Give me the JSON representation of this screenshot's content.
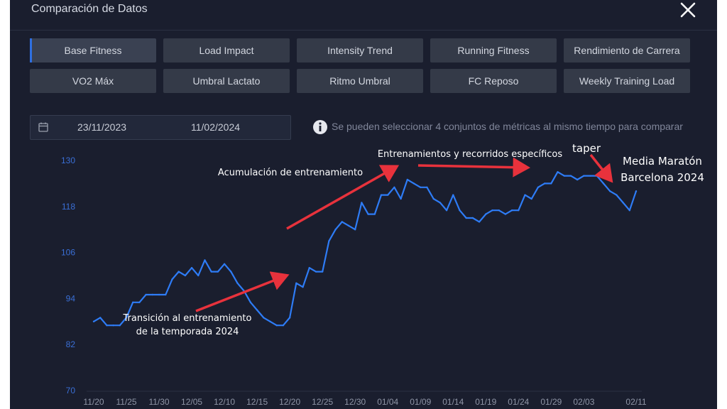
{
  "window": {
    "title": "Comparación de Datos",
    "close_icon": "close-icon"
  },
  "metrics": [
    {
      "label": "Base Fitness",
      "active": true
    },
    {
      "label": "Load Impact",
      "active": false
    },
    {
      "label": "Intensity Trend",
      "active": false
    },
    {
      "label": "Running Fitness",
      "active": false
    },
    {
      "label": "Rendimiento de Carrera",
      "active": false
    },
    {
      "label": "VO2 Máx",
      "active": false
    },
    {
      "label": "Umbral Lactato",
      "active": false
    },
    {
      "label": "Ritmo Umbral",
      "active": false
    },
    {
      "label": "FC Reposo",
      "active": false
    },
    {
      "label": "Weekly Training Load",
      "active": false
    }
  ],
  "date_range": {
    "start": "23/11/2023",
    "end": "11/02/2024",
    "icon": "calendar-icon"
  },
  "info": {
    "text": "Se pueden seleccionar 4 conjuntos de métricas al mismo tiempo para comparar",
    "icon": "info-icon"
  },
  "colors": {
    "line": "#2e7cf6",
    "axis_text": "#3a6fd6",
    "annotation": "#e8323c",
    "background": "#1a1e2e"
  },
  "chart_data": {
    "type": "line",
    "title": "",
    "xlabel": "",
    "ylabel": "",
    "ylim": [
      70,
      130
    ],
    "yticks": [
      "130",
      "118",
      "106",
      "94",
      "82",
      "70"
    ],
    "xticks": [
      "11/20",
      "11/25",
      "11/30",
      "12/05",
      "12/10",
      "12/15",
      "12/20",
      "12/25",
      "12/30",
      "01/04",
      "01/09",
      "01/14",
      "01/19",
      "01/24",
      "01/29",
      "02/03",
      "02/11"
    ],
    "grid": false,
    "series": [
      {
        "x": [
          "11/20",
          "11/21",
          "11/22",
          "11/23",
          "11/24",
          "11/25",
          "11/26",
          "11/27",
          "11/28",
          "11/29",
          "11/30",
          "12/01",
          "12/02",
          "12/03",
          "12/04",
          "12/05",
          "12/06",
          "12/07",
          "12/08",
          "12/09",
          "12/10",
          "12/11",
          "12/12",
          "12/13",
          "12/14",
          "12/15",
          "12/16",
          "12/17",
          "12/18",
          "12/19",
          "12/20",
          "12/21",
          "12/22",
          "12/23",
          "12/24",
          "12/25",
          "12/26",
          "12/27",
          "12/28",
          "12/29",
          "12/30",
          "12/31",
          "01/01",
          "01/02",
          "01/03",
          "01/04",
          "01/05",
          "01/06",
          "01/07",
          "01/08",
          "01/09",
          "01/10",
          "01/11",
          "01/12",
          "01/13",
          "01/14",
          "01/15",
          "01/16",
          "01/17",
          "01/18",
          "01/19",
          "01/20",
          "01/21",
          "01/22",
          "01/23",
          "01/24",
          "01/25",
          "01/26",
          "01/27",
          "01/28",
          "01/29",
          "01/30",
          "01/31",
          "02/01",
          "02/02",
          "02/03",
          "02/04",
          "02/05",
          "02/06",
          "02/07",
          "02/08",
          "02/09",
          "02/10",
          "02/11"
        ],
        "values": [
          88,
          89,
          87,
          87,
          87,
          89,
          93,
          93,
          95,
          95,
          95,
          95,
          99,
          101,
          100,
          102,
          100,
          104,
          101,
          101,
          103,
          101,
          98,
          96,
          93,
          91,
          89,
          88,
          87,
          87,
          89,
          98,
          97,
          102,
          101,
          101,
          109,
          112,
          114,
          113,
          112,
          119,
          116,
          116,
          121,
          121,
          123,
          120,
          125,
          124,
          123,
          123,
          120,
          119,
          117,
          121,
          117,
          115,
          115,
          114,
          116,
          117,
          117,
          116,
          117,
          117,
          121,
          120,
          123,
          124,
          124,
          127,
          126,
          126,
          125,
          126,
          126,
          126,
          124,
          122,
          121,
          119,
          117,
          122
        ]
      }
    ],
    "annotations": [
      {
        "text": "Transición al entrenamiento",
        "text2": "de la temporada 2024"
      },
      {
        "text": "Acumulación de entrenamiento"
      },
      {
        "text": "Entrenamientos y recorridos específicos"
      },
      {
        "text": "taper"
      },
      {
        "text": "Media Maratón",
        "text2": "Barcelona 2024"
      }
    ]
  }
}
